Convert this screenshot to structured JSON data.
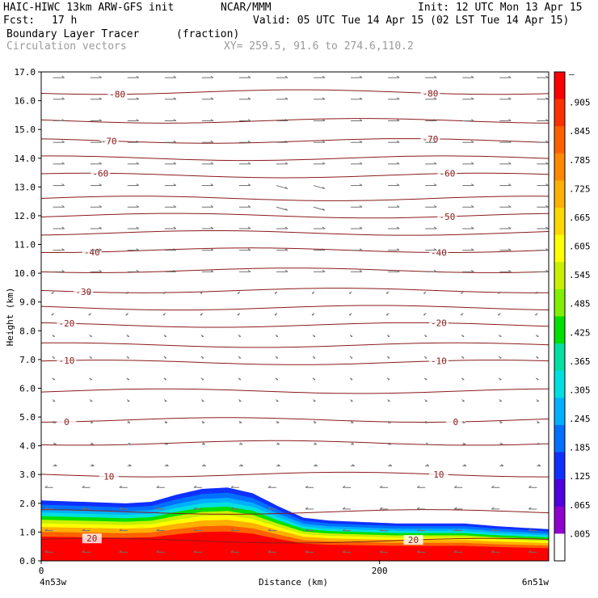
{
  "header": {
    "model": "HAIC-HIWC 13km ARW-GFS init",
    "org": "NCAR/MMM",
    "init": "Init: 12 UTC Mon 13 Apr 15",
    "fcst_label": "Fcst:",
    "fcst_value": "17 h",
    "valid": "Valid: 05 UTC Tue 14 Apr 15 (02 LST Tue 14 Apr 15)",
    "field": "Boundary Layer Tracer",
    "field_units": "(fraction)",
    "vectors": "Circulation vectors",
    "xy": "XY= 259.5, 91.6 to 274.6,110.2"
  },
  "colors": {
    "contour": "#8b1a1a",
    "vector": "#707070",
    "tracer_scale": [
      "#ffffff",
      "#9000d0",
      "#5000e0",
      "#1030ff",
      "#0070ff",
      "#00b0ff",
      "#00e0e0",
      "#00e0a0",
      "#00e000",
      "#80f000",
      "#c8f000",
      "#ffff00",
      "#ffd800",
      "#ffb000",
      "#ff8800",
      "#ff6000",
      "#ff3000",
      "#ff0000"
    ]
  },
  "chart_data": {
    "type": "cross-section",
    "xlabel": "Distance (km)",
    "ylabel": "Height (km)",
    "xlim": [
      0,
      300
    ],
    "ylim": [
      0,
      17
    ],
    "x_ticks": [
      "0",
      "200"
    ],
    "x_endpoints": [
      "4n53w",
      "6n51w"
    ],
    "y_ticks": [
      "0.0",
      "1.0",
      "2.0",
      "3.0",
      "4.0",
      "5.0",
      "6.0",
      "7.0",
      "8.0",
      "9.0",
      "10.0",
      "11.0",
      "12.0",
      "13.0",
      "14.0",
      "15.0",
      "16.0",
      "17.0"
    ],
    "colorbar_labels": [
      "–",
      ".905",
      ".845",
      ".785",
      ".725",
      ".665",
      ".605",
      ".545",
      ".485",
      ".425",
      ".365",
      ".305",
      ".245",
      ".185",
      ".125",
      ".065",
      ".005"
    ],
    "temperature_contours": [
      {
        "label": "-80",
        "height": 16.3,
        "label_x": [
          45,
          230
        ]
      },
      {
        "label": "-70",
        "height": 14.6,
        "label_x": [
          40,
          230
        ]
      },
      {
        "label": "-60",
        "height": 13.4,
        "label_x": [
          35,
          240
        ]
      },
      {
        "label": "-50",
        "height": 12.0,
        "label_x": [
          240
        ]
      },
      {
        "label": "-40",
        "height": 10.8,
        "label_x": [
          30,
          235
        ]
      },
      {
        "label": "-30",
        "height": 9.4,
        "label_x": [
          25
        ]
      },
      {
        "label": "-20",
        "height": 8.2,
        "label_x": [
          15,
          235
        ]
      },
      {
        "label": "-10",
        "height": 6.9,
        "label_x": [
          15,
          235
        ]
      },
      {
        "label": "0",
        "height": 4.9,
        "label_x": [
          15,
          245
        ]
      },
      {
        "label": "10",
        "height": 3.0,
        "label_x": [
          40,
          235
        ]
      },
      {
        "label": "20",
        "height": 0.7,
        "label_x": [
          30,
          220
        ]
      }
    ],
    "unlabeled_contours_km": [
      15.3,
      14.0,
      12.6,
      11.4,
      10.1,
      8.8,
      7.5,
      5.9,
      4.1,
      1.7
    ],
    "tracer_top_km": [
      [
        0,
        2.1
      ],
      [
        25,
        2.05
      ],
      [
        50,
        2.0
      ],
      [
        65,
        2.05
      ],
      [
        80,
        2.3
      ],
      [
        95,
        2.5
      ],
      [
        110,
        2.55
      ],
      [
        125,
        2.35
      ],
      [
        140,
        1.9
      ],
      [
        155,
        1.5
      ],
      [
        170,
        1.4
      ],
      [
        190,
        1.35
      ],
      [
        210,
        1.3
      ],
      [
        230,
        1.3
      ],
      [
        250,
        1.3
      ],
      [
        270,
        1.2
      ],
      [
        285,
        1.15
      ],
      [
        300,
        1.1
      ]
    ]
  }
}
